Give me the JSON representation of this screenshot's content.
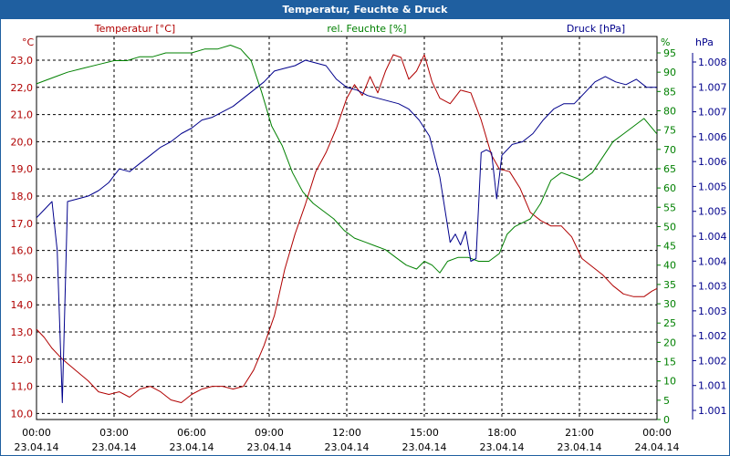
{
  "window": {
    "title": "Temperatur, Feuchte & Druck"
  },
  "chart_data": {
    "type": "line",
    "grid": true,
    "x_ticks": [
      {
        "time": "00:00",
        "date": "23.04.14"
      },
      {
        "time": "03:00",
        "date": "23.04.14"
      },
      {
        "time": "06:00",
        "date": "23.04.14"
      },
      {
        "time": "09:00",
        "date": "23.04.14"
      },
      {
        "time": "12:00",
        "date": "23.04.14"
      },
      {
        "time": "15:00",
        "date": "23.04.14"
      },
      {
        "time": "18:00",
        "date": "23.04.14"
      },
      {
        "time": "21:00",
        "date": "23.04.14"
      },
      {
        "time": "00:00",
        "date": "24.04.14"
      }
    ],
    "xlim": [
      0,
      24
    ],
    "axes": {
      "temperature": {
        "label": "Temperatur [°C]",
        "unit": "°C",
        "color": "#b00000",
        "ylim": [
          10.0,
          23.0
        ],
        "ticks": [
          "10,0",
          "11,0",
          "12,0",
          "13,0",
          "14,0",
          "15,0",
          "16,0",
          "17,0",
          "18,0",
          "19,0",
          "20,0",
          "21,0",
          "22,0",
          "23,0"
        ]
      },
      "humidity": {
        "label": "rel. Feuchte [%]",
        "unit": "%",
        "color": "#008000",
        "ylim": [
          0,
          95
        ],
        "ticks": [
          "0",
          "5",
          "10",
          "15",
          "20",
          "25",
          "30",
          "35",
          "40",
          "45",
          "50",
          "55",
          "60",
          "65",
          "70",
          "75",
          "80",
          "85",
          "90",
          "95"
        ]
      },
      "pressure": {
        "label": "Druck [hPa]",
        "unit": "hPa",
        "color": "#00008b",
        "ticks": [
          "1.001",
          "1.001",
          "1.002",
          "1.002",
          "1.003",
          "1.003",
          "1.004",
          "1.004",
          "1.005",
          "1.005",
          "1.006",
          "1.006",
          "1.007",
          "1.007",
          "1.008"
        ]
      }
    },
    "series": [
      {
        "name": "Temperatur [°C]",
        "axis": "temperature",
        "color": "#b00000",
        "x": [
          0,
          0.3,
          0.6,
          1,
          1.5,
          2,
          2.4,
          2.8,
          3.2,
          3.6,
          4,
          4.4,
          4.8,
          5.2,
          5.6,
          6,
          6.4,
          6.8,
          7.2,
          7.6,
          8,
          8.4,
          8.8,
          9.2,
          9.6,
          10,
          10.4,
          10.8,
          11.2,
          11.6,
          12,
          12.3,
          12.6,
          12.9,
          13.2,
          13.5,
          13.8,
          14.1,
          14.4,
          14.7,
          15,
          15.3,
          15.6,
          16,
          16.4,
          16.8,
          17.2,
          17.6,
          17.9,
          18.3,
          18.7,
          19.1,
          19.5,
          19.9,
          20.3,
          20.7,
          21.1,
          21.5,
          21.9,
          22.3,
          22.7,
          23.1,
          23.5,
          23.8,
          24
        ],
        "values": [
          13.1,
          12.8,
          12.4,
          12.0,
          11.6,
          11.2,
          10.8,
          10.7,
          10.8,
          10.6,
          10.9,
          11.0,
          10.8,
          10.5,
          10.4,
          10.7,
          10.9,
          11.0,
          11.0,
          10.9,
          11.0,
          11.6,
          12.5,
          13.6,
          15.3,
          16.6,
          17.7,
          18.9,
          19.6,
          20.5,
          21.6,
          22.1,
          21.7,
          22.4,
          21.8,
          22.6,
          23.2,
          23.1,
          22.3,
          22.6,
          23.2,
          22.2,
          21.6,
          21.4,
          21.9,
          21.8,
          20.8,
          19.5,
          19.0,
          18.9,
          18.3,
          17.4,
          17.1,
          16.9,
          16.9,
          16.5,
          15.7,
          15.4,
          15.1,
          14.7,
          14.4,
          14.3,
          14.3,
          14.5,
          14.6
        ]
      },
      {
        "name": "rel. Feuchte [%]",
        "axis": "humidity",
        "color": "#008000",
        "x": [
          0,
          0.4,
          0.8,
          1.2,
          1.8,
          2.4,
          3,
          3.5,
          4,
          4.5,
          5,
          5.5,
          6,
          6.5,
          7,
          7.5,
          7.9,
          8.3,
          8.7,
          9.1,
          9.5,
          9.9,
          10.3,
          10.7,
          11.1,
          11.5,
          11.9,
          12.3,
          12.7,
          13.1,
          13.5,
          13.9,
          14.3,
          14.7,
          15,
          15.3,
          15.6,
          15.9,
          16.3,
          16.7,
          17.1,
          17.5,
          17.9,
          18.2,
          18.5,
          18.8,
          19.1,
          19.5,
          19.9,
          20.3,
          20.7,
          21.1,
          21.5,
          21.9,
          22.3,
          22.7,
          23.1,
          23.5,
          24
        ],
        "values": [
          87,
          88,
          89,
          90,
          91,
          92,
          93,
          93,
          94,
          94,
          95,
          95,
          95,
          96,
          96,
          97,
          96,
          93,
          85,
          76,
          71,
          64,
          59,
          56,
          54,
          52,
          49,
          47,
          46,
          45,
          44,
          42,
          40,
          39,
          41,
          40,
          38,
          41,
          42,
          42,
          41,
          41,
          43,
          48,
          50,
          51,
          52,
          56,
          62,
          64,
          63,
          62,
          64,
          68,
          72,
          74,
          76,
          78,
          74
        ]
      },
      {
        "name": "Druck [hPa]",
        "x": [
          0,
          0.3,
          0.6,
          0.8,
          1,
          1.2,
          1.6,
          2,
          2.4,
          2.8,
          3.2,
          3.6,
          4,
          4.4,
          4.8,
          5.2,
          5.6,
          6,
          6.4,
          6.8,
          7.2,
          7.6,
          8,
          8.4,
          8.8,
          9.2,
          9.6,
          10,
          10.4,
          10.8,
          11.2,
          11.6,
          12,
          12.4,
          12.8,
          13.2,
          13.6,
          14,
          14.4,
          14.8,
          15.2,
          15.6,
          16,
          16.2,
          16.4,
          16.6,
          16.8,
          17,
          17.2,
          17.4,
          17.6,
          17.8,
          18,
          18.4,
          18.8,
          19.2,
          19.6,
          20,
          20.4,
          20.8,
          21.2,
          21.6,
          22,
          22.4,
          22.8,
          23.2,
          23.6,
          24
        ],
        "axis": "pressure",
        "color": "#00008b",
        "values": [
          17.2,
          17.5,
          17.8,
          16.0,
          10.4,
          17.8,
          17.9,
          18.0,
          18.2,
          18.5,
          19.0,
          18.9,
          19.2,
          19.5,
          19.8,
          20.0,
          20.3,
          20.5,
          20.8,
          20.9,
          21.1,
          21.3,
          21.6,
          21.9,
          22.2,
          22.6,
          22.7,
          22.8,
          23.0,
          22.9,
          22.8,
          22.3,
          22.0,
          21.9,
          21.7,
          21.6,
          21.5,
          21.4,
          21.2,
          20.8,
          20.2,
          18.7,
          16.3,
          16.6,
          16.2,
          16.7,
          15.6,
          15.7,
          19.6,
          19.7,
          19.6,
          17.9,
          19.5,
          19.9,
          20.0,
          20.3,
          20.8,
          21.2,
          21.4,
          21.4,
          21.8,
          22.2,
          22.4,
          22.2,
          22.1,
          22.3,
          22.0,
          22.0
        ]
      }
    ]
  }
}
